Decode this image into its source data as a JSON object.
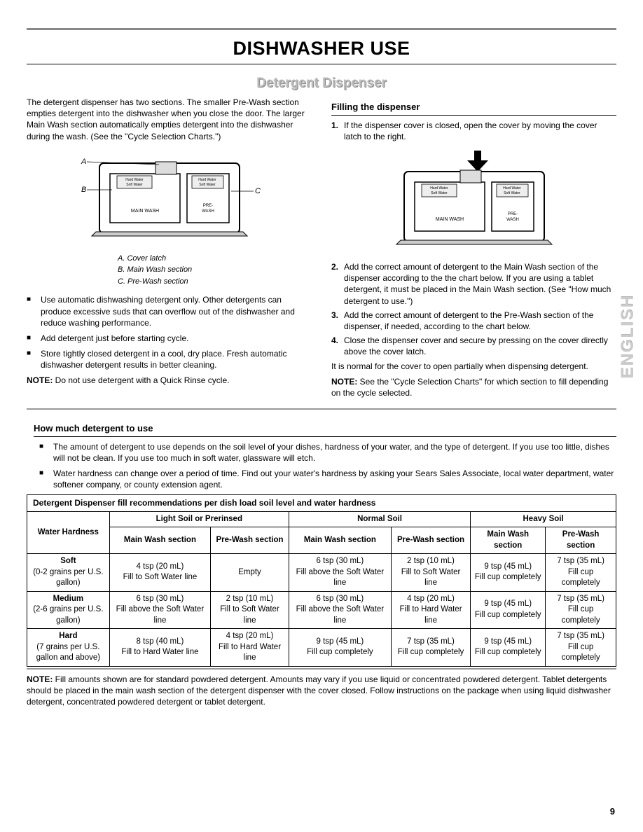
{
  "page": {
    "title": "DISHWASHER USE",
    "subtitle": "Detergent Dispenser",
    "sideLabel": "ENGLISH",
    "pageNumber": "9",
    "watermark": ""
  },
  "left": {
    "intro": "The detergent dispenser has two sections. The smaller Pre-Wash section empties detergent into the dishwasher when you close the door. The larger Main Wash section automatically empties detergent into the dishwasher during the wash. (See the \"Cycle Selection Charts.\")",
    "diagram": {
      "labels": {
        "A": "A",
        "B": "B",
        "C": "C"
      },
      "boxLabels": {
        "hw1": "Hard Water",
        "sw1": "Soft Water",
        "hw2": "Hard Water",
        "sw2": "Soft Water",
        "main": "MAIN WASH",
        "pre": "PRE-\nWASH"
      },
      "caption": {
        "a": "A. Cover latch",
        "b": "B. Main Wash section",
        "c": "C. Pre-Wash section"
      }
    },
    "bullets": [
      "Use automatic dishwashing detergent only. Other detergents can produce excessive suds that can overflow out of the dishwasher and reduce washing performance.",
      "Add detergent just before starting cycle.",
      "Store tightly closed detergent in a cool, dry place. Fresh automatic dishwasher detergent results in better cleaning."
    ],
    "note": {
      "label": "NOTE:",
      "text": " Do not use detergent with a Quick Rinse cycle."
    }
  },
  "right": {
    "heading": "Filling the dispenser",
    "steps": [
      "If the dispenser cover is closed, open the cover by moving the cover latch to the right.",
      "Add the correct amount of detergent to the Main Wash section of the dispenser according to the the chart below. If you are using a tablet detergent, it must be placed in the Main Wash section. (See \"How much detergent to use.\")",
      "Add the correct amount of detergent to the Pre-Wash section of the dispenser, if needed, according to the chart below.",
      "Close the dispenser cover and secure by pressing on the cover directly above the cover latch."
    ],
    "postSteps": "It is normal for the cover to open partially when dispensing detergent.",
    "note": {
      "label": "NOTE:",
      "text": " See the \"Cycle Selection Charts\" for which section to fill depending on the cycle selected."
    }
  },
  "howMuch": {
    "heading": "How much detergent to use",
    "bullets": [
      "The amount of detergent to use depends on the soil level of your dishes, hardness of your water, and the type of detergent. If you use too little, dishes will not be clean. If you use too much in soft water, glassware will etch.",
      "Water hardness can change over a period of time. Find out your water's hardness by asking your Sears Sales Associate, local water department, water softener company, or county extension agent."
    ]
  },
  "table": {
    "title": "Detergent Dispenser fill recommendations per dish load soil level and water hardness",
    "colGroups": [
      "Light Soil or Prerinsed",
      "Normal Soil",
      "Heavy Soil"
    ],
    "rowHeader": "Water Hardness",
    "subCols": [
      "Main Wash section",
      "Pre-Wash section"
    ],
    "rows": [
      {
        "hardness": "Soft\n(0-2 grains per U.S. gallon)",
        "cells": [
          "4 tsp (20 mL)\nFill to Soft Water line",
          "Empty",
          "6 tsp (30 mL)\nFill above the Soft Water line",
          "2 tsp (10 mL)\nFill to Soft Water line",
          "9 tsp (45 mL)\nFill cup completely",
          "7 tsp (35 mL)\nFill cup completely"
        ]
      },
      {
        "hardness": "Medium\n(2-6 grains per U.S. gallon)",
        "cells": [
          "6 tsp (30 mL)\nFill above the Soft Water line",
          "2 tsp (10 mL)\nFill to Soft Water line",
          "6 tsp (30 mL)\nFill above the Soft Water line",
          "4 tsp (20 mL)\nFill to Hard Water line",
          "9 tsp (45 mL)\nFill cup completely",
          "7 tsp (35 mL)\nFill cup completely"
        ]
      },
      {
        "hardness": "Hard\n(7 grains per U.S. gallon and above)",
        "cells": [
          "8 tsp (40 mL)\nFill to Hard Water line",
          "4 tsp (20 mL)\nFill to Hard Water line",
          "9 tsp (45 mL)\nFill cup completely",
          "7 tsp (35 mL)\nFill cup completely",
          "9 tsp (45 mL)\nFill cup completely",
          "7 tsp (35 mL)\nFill cup completely"
        ]
      }
    ]
  },
  "footNote": {
    "label": "NOTE:",
    "text": " Fill amounts shown are for standard powdered detergent. Amounts may vary if you use liquid or concentrated powdered detergent. Tablet detergents should be placed in the main wash section of the detergent dispenser with the cover closed. Follow instructions on the package when using liquid dishwasher detergent, concentrated powdered detergent or tablet detergent."
  }
}
